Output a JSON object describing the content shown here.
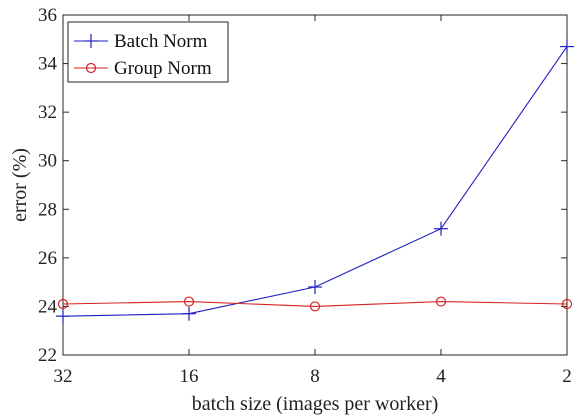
{
  "chart_data": {
    "type": "line",
    "title": "",
    "xlabel": "batch size (images per worker)",
    "ylabel": "error (%)",
    "categories": [
      "32",
      "16",
      "8",
      "4",
      "2"
    ],
    "ylim": [
      22,
      36
    ],
    "yticks": [
      22,
      24,
      26,
      28,
      30,
      32,
      34,
      36
    ],
    "grid": false,
    "legend_position": "top-left",
    "series": [
      {
        "name": "Batch Norm",
        "color": "#1f1fbf",
        "marker": "plus",
        "values": [
          23.6,
          23.7,
          24.8,
          27.2,
          34.7
        ]
      },
      {
        "name": "Group Norm",
        "color": "#d42020",
        "marker": "circle",
        "values": [
          24.1,
          24.2,
          24.0,
          24.2,
          24.1
        ]
      }
    ]
  }
}
